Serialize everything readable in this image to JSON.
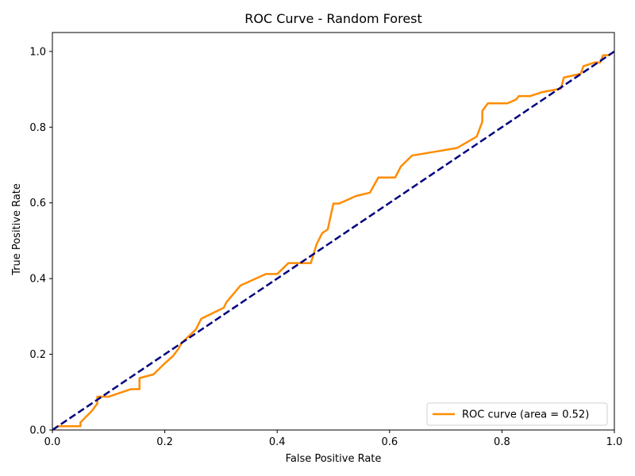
{
  "chart_data": {
    "type": "line",
    "title": "ROC Curve - Random Forest",
    "xlabel": "False Positive Rate",
    "ylabel": "True Positive Rate",
    "xlim": [
      0.0,
      1.0
    ],
    "ylim": [
      0.0,
      1.05
    ],
    "xticks": [
      "0.0",
      "0.2",
      "0.4",
      "0.6",
      "0.8",
      "1.0"
    ],
    "yticks": [
      "0.0",
      "0.2",
      "0.4",
      "0.6",
      "0.8",
      "1.0"
    ],
    "grid": false,
    "legend_position": "lower right",
    "series": [
      {
        "name": "ROC curve (area = 0.52)",
        "color": "#ff8c00",
        "style": "solid",
        "x": [
          0.0,
          0.01,
          0.05,
          0.05,
          0.06,
          0.07,
          0.08,
          0.08,
          0.1,
          0.14,
          0.155,
          0.155,
          0.18,
          0.2,
          0.215,
          0.225,
          0.23,
          0.255,
          0.265,
          0.305,
          0.31,
          0.335,
          0.38,
          0.4,
          0.42,
          0.46,
          0.47,
          0.48,
          0.49,
          0.5,
          0.51,
          0.54,
          0.565,
          0.58,
          0.61,
          0.62,
          0.64,
          0.68,
          0.72,
          0.755,
          0.765,
          0.765,
          0.775,
          0.81,
          0.825,
          0.83,
          0.85,
          0.87,
          0.905,
          0.91,
          0.94,
          0.945,
          0.965,
          0.975,
          0.98,
          0.99,
          1.0
        ],
        "y": [
          0.0,
          0.01,
          0.01,
          0.02,
          0.035,
          0.05,
          0.07,
          0.088,
          0.088,
          0.108,
          0.108,
          0.137,
          0.147,
          0.176,
          0.196,
          0.216,
          0.23,
          0.265,
          0.294,
          0.323,
          0.338,
          0.382,
          0.412,
          0.412,
          0.441,
          0.441,
          0.49,
          0.52,
          0.53,
          0.598,
          0.598,
          0.618,
          0.627,
          0.667,
          0.667,
          0.696,
          0.725,
          0.735,
          0.745,
          0.775,
          0.814,
          0.843,
          0.863,
          0.863,
          0.873,
          0.882,
          0.882,
          0.892,
          0.902,
          0.931,
          0.941,
          0.961,
          0.971,
          0.971,
          0.99,
          0.99,
          1.0
        ]
      },
      {
        "name": "",
        "color": "#000080",
        "style": "dashed",
        "x": [
          0.0,
          1.0
        ],
        "y": [
          0.0,
          1.0
        ]
      }
    ]
  }
}
